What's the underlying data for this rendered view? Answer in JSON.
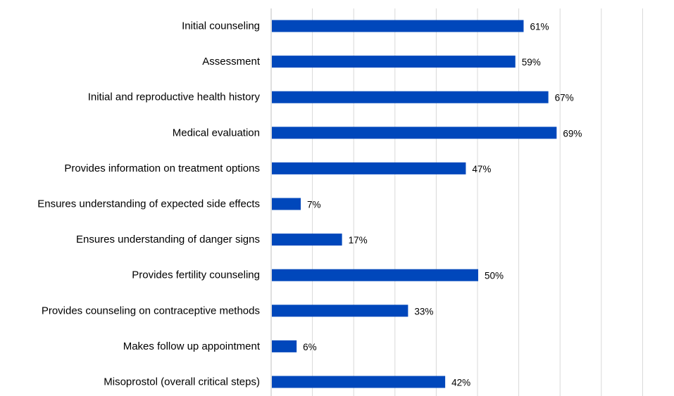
{
  "chart_data": {
    "type": "bar",
    "orientation": "horizontal",
    "title": "",
    "xlabel": "",
    "ylabel": "",
    "xlim": [
      0,
      90
    ],
    "grid": true,
    "value_format": "percent",
    "bar_color": "#0047BB",
    "categories": [
      "Initial counseling",
      "Assessment",
      "Initial and reproductive health history",
      "Medical evaluation",
      "Provides information on treatment options",
      "Ensures understanding of expected side effects",
      "Ensures understanding of danger signs",
      "Provides fertility counseling",
      "Provides counseling on contraceptive methods",
      "Makes follow up appointment ",
      "Misoprostol (overall critical steps)"
    ],
    "values": [
      61,
      59,
      67,
      69,
      47,
      7,
      17,
      50,
      33,
      6,
      42
    ],
    "data_labels": [
      "61%",
      "59%",
      "67%",
      "69%",
      "47%",
      "7%",
      "17%",
      "50%",
      "33%",
      "6%",
      "42%"
    ]
  }
}
